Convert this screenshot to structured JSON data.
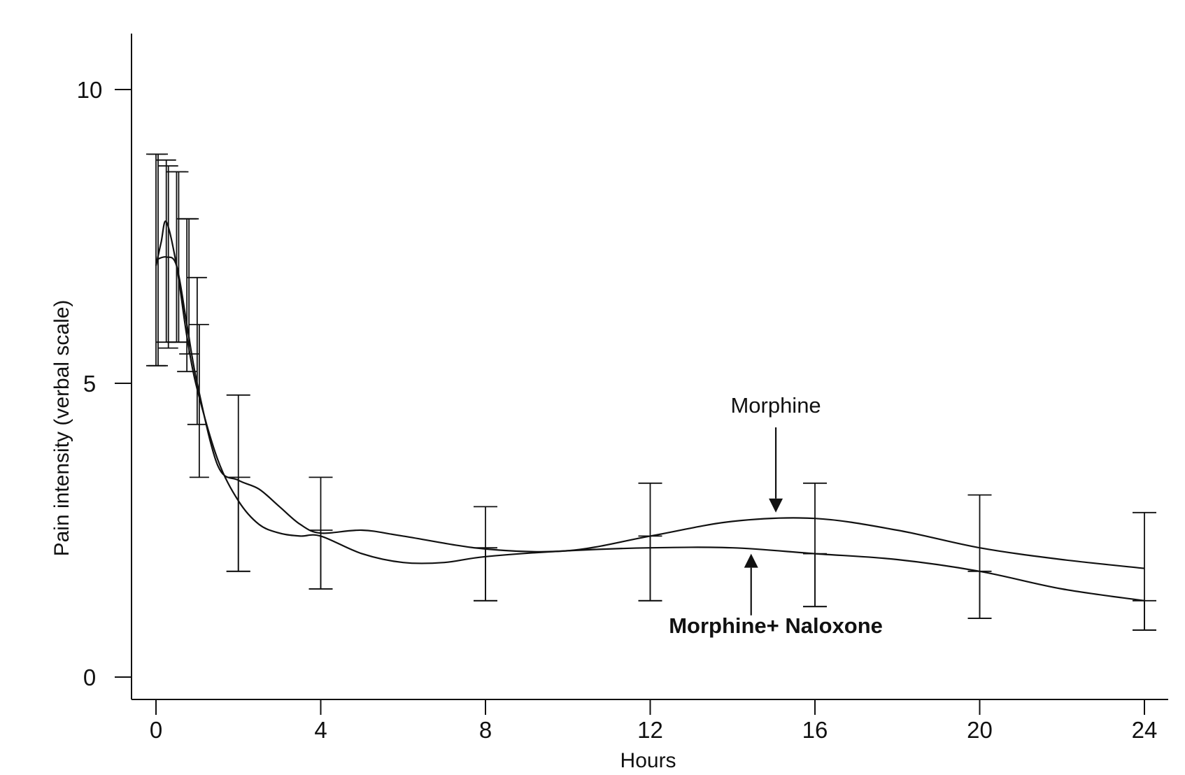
{
  "chart_data": {
    "type": "line",
    "title": "",
    "xlabel": "Hours",
    "ylabel": "Pain intensity (verbal scale)",
    "xlim": [
      -0.5,
      24.6
    ],
    "ylim": [
      -0.4,
      10.9
    ],
    "x_ticks": [
      0,
      4,
      8,
      12,
      16,
      20,
      24
    ],
    "x_tick_labels": [
      "0",
      "4",
      "8",
      "12",
      "16",
      "20",
      "24"
    ],
    "y_ticks": [
      0,
      5,
      10
    ],
    "y_tick_labels": [
      "0",
      "5",
      "10"
    ],
    "grid": false,
    "legend": "none",
    "series": [
      {
        "name": "Morphine",
        "line_color": "#111111",
        "curve": [
          {
            "x": 0,
            "y": 7.1
          },
          {
            "x": 0.25,
            "y": 7.15
          },
          {
            "x": 0.5,
            "y": 7.0
          },
          {
            "x": 0.75,
            "y": 6.0
          },
          {
            "x": 1.0,
            "y": 5.0
          },
          {
            "x": 1.5,
            "y": 3.6
          },
          {
            "x": 2.0,
            "y": 3.35
          },
          {
            "x": 2.5,
            "y": 3.2
          },
          {
            "x": 3.0,
            "y": 2.9
          },
          {
            "x": 3.5,
            "y": 2.6
          },
          {
            "x": 4.0,
            "y": 2.45
          },
          {
            "x": 5.0,
            "y": 2.5
          },
          {
            "x": 6.0,
            "y": 2.4
          },
          {
            "x": 8.0,
            "y": 2.18
          },
          {
            "x": 10.0,
            "y": 2.15
          },
          {
            "x": 12.0,
            "y": 2.4
          },
          {
            "x": 14.0,
            "y": 2.65
          },
          {
            "x": 16.0,
            "y": 2.7
          },
          {
            "x": 18.0,
            "y": 2.5
          },
          {
            "x": 20.0,
            "y": 2.2
          },
          {
            "x": 22.0,
            "y": 2.0
          },
          {
            "x": 24.0,
            "y": 1.85
          }
        ],
        "error_bars": [
          {
            "x": 0,
            "low": 5.3,
            "high": 8.9
          },
          {
            "x": 0.25,
            "low": 5.7,
            "high": 8.8
          },
          {
            "x": 0.5,
            "low": 5.7,
            "high": 8.6
          },
          {
            "x": 0.75,
            "low": 5.2,
            "high": 7.8
          },
          {
            "x": 1.0,
            "low": 4.3,
            "high": 6.8
          },
          {
            "x": 2.0,
            "low": 1.8,
            "high": 4.8
          },
          {
            "x": 4.0,
            "low": 1.5,
            "high": 3.4
          },
          {
            "x": 8.0,
            "low": 1.3,
            "high": 2.9
          },
          {
            "x": 12.0,
            "low": 1.3,
            "high": 3.3
          },
          {
            "x": 16.0,
            "low": 1.2,
            "high": 3.3
          },
          {
            "x": 20.0,
            "low": 1.0,
            "high": 3.1
          },
          {
            "x": 24.0,
            "low": 0.8,
            "high": 2.8
          }
        ]
      },
      {
        "name": "Morphine+ Naloxone",
        "line_color": "#111111",
        "curve": [
          {
            "x": 0,
            "y": 7.0
          },
          {
            "x": 0.125,
            "y": 7.4
          },
          {
            "x": 0.25,
            "y": 7.75
          },
          {
            "x": 0.5,
            "y": 7.0
          },
          {
            "x": 0.75,
            "y": 5.8
          },
          {
            "x": 1.0,
            "y": 4.9
          },
          {
            "x": 1.5,
            "y": 3.7
          },
          {
            "x": 2.0,
            "y": 3.0
          },
          {
            "x": 2.5,
            "y": 2.6
          },
          {
            "x": 3.0,
            "y": 2.45
          },
          {
            "x": 3.5,
            "y": 2.4
          },
          {
            "x": 4.0,
            "y": 2.4
          },
          {
            "x": 5.0,
            "y": 2.1
          },
          {
            "x": 6.0,
            "y": 1.95
          },
          {
            "x": 7.0,
            "y": 1.95
          },
          {
            "x": 8.0,
            "y": 2.05
          },
          {
            "x": 10.0,
            "y": 2.15
          },
          {
            "x": 12.0,
            "y": 2.2
          },
          {
            "x": 14.0,
            "y": 2.2
          },
          {
            "x": 16.0,
            "y": 2.1
          },
          {
            "x": 18.0,
            "y": 2.0
          },
          {
            "x": 20.0,
            "y": 1.8
          },
          {
            "x": 22.0,
            "y": 1.5
          },
          {
            "x": 24.0,
            "y": 1.3
          }
        ],
        "error_bars": [
          {
            "x": 0,
            "low": 5.3,
            "high": 8.9
          },
          {
            "x": 0.25,
            "low": 5.6,
            "high": 8.7
          },
          {
            "x": 0.5,
            "low": 5.7,
            "high": 8.6
          },
          {
            "x": 0.75,
            "low": 5.5,
            "high": 7.8
          },
          {
            "x": 1.0,
            "low": 3.4,
            "high": 6.0
          },
          {
            "x": 2.0,
            "low": 1.8,
            "high": 3.4
          },
          {
            "x": 4.0,
            "low": 1.5,
            "high": 2.5
          },
          {
            "x": 8.0,
            "low": 1.3,
            "high": 2.2
          },
          {
            "x": 12.0,
            "low": 1.3,
            "high": 2.4
          },
          {
            "x": 16.0,
            "low": 1.2,
            "high": 2.1
          },
          {
            "x": 20.0,
            "low": 1.0,
            "high": 1.8
          },
          {
            "x": 24.0,
            "low": 0.8,
            "high": 1.3
          }
        ]
      }
    ],
    "annotations": [
      {
        "text": "Morphine",
        "bold": false,
        "text_x": 15.05,
        "text_y": 4.5,
        "arrow_from_y": 4.25,
        "arrow_to_y": 2.8,
        "arrow_x": 15.05
      },
      {
        "text": "Morphine+ Naloxone",
        "bold": true,
        "text_x": 15.05,
        "text_y": 0.75,
        "arrow_from_y": 1.05,
        "arrow_to_y": 2.1,
        "arrow_x": 14.45
      }
    ]
  }
}
